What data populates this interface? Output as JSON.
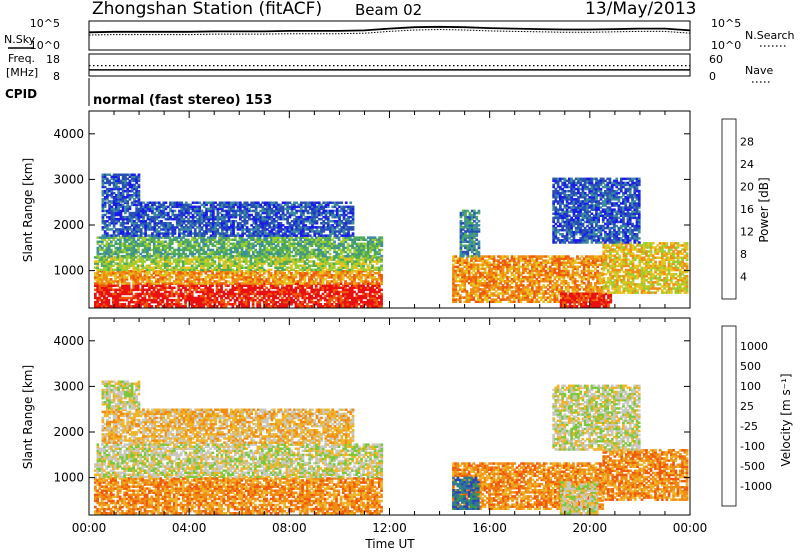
{
  "header": {
    "station": "Zhongshan Station (fitACF)",
    "beam": "Beam 02",
    "date": "13/May/2013",
    "cpid_text": "normal (fast stereo) 153"
  },
  "side_labels": {
    "nsky": "N.Sky",
    "freq_line1": "Freq.",
    "freq_line2": "[MHz]",
    "cpid": "CPID",
    "nsearch": "N.Search",
    "nave": "Nave"
  },
  "chart_data": [
    {
      "type": "line",
      "panel": "noise",
      "left_ticks": [
        "10^5",
        "10^0"
      ],
      "right_ticks": [
        "10^5",
        "10^0"
      ],
      "series": [
        {
          "name": "N.Sky",
          "x": [
            0,
            1,
            2,
            3,
            4,
            5,
            6,
            7,
            8,
            9,
            10,
            11,
            12,
            13,
            14,
            15,
            16,
            17,
            18,
            19,
            20,
            21,
            22,
            23,
            24
          ],
          "y": [
            3.2,
            3.3,
            3.3,
            3.3,
            3.3,
            3.4,
            3.4,
            3.4,
            3.5,
            3.5,
            3.5,
            3.6,
            4.0,
            4.3,
            4.4,
            4.3,
            4.1,
            4.0,
            3.9,
            3.8,
            3.8,
            3.9,
            4.0,
            4.0,
            3.6
          ]
        },
        {
          "name": "N.Search",
          "x": [
            0,
            1,
            2,
            3,
            4,
            5,
            6,
            7,
            8,
            9,
            10,
            11,
            12,
            13,
            14,
            15,
            16,
            17,
            18,
            19,
            20,
            21,
            22,
            23,
            24
          ],
          "y": [
            2.6,
            2.7,
            2.7,
            2.7,
            2.7,
            2.8,
            2.8,
            2.8,
            2.9,
            2.9,
            2.9,
            3.0,
            3.4,
            3.7,
            3.8,
            3.7,
            3.5,
            3.4,
            3.3,
            3.2,
            3.2,
            3.3,
            3.4,
            3.4,
            3.0
          ]
        }
      ]
    },
    {
      "type": "line",
      "panel": "frequency",
      "left_ticks": [
        "18",
        "8"
      ],
      "right_ticks": [
        "60",
        "0"
      ],
      "series": [
        {
          "name": "Freq.",
          "x": [
            0,
            24
          ],
          "y": [
            10.3,
            10.3
          ]
        },
        {
          "name": "Nave",
          "x": [
            0,
            24
          ],
          "y": [
            28,
            28
          ]
        }
      ]
    },
    {
      "type": "heatmap",
      "panel": "power",
      "ylabel": "Slant Range [km]",
      "ylim": [
        180,
        4500
      ],
      "yticks": [
        1000,
        2000,
        3000,
        4000
      ],
      "colorbar_label": "Power [dB]",
      "colorbar_ticks": [
        "4",
        "8",
        "12",
        "16",
        "20",
        "24",
        "28"
      ],
      "colors": [
        "#1a1aee",
        "#2850b4",
        "#3c8ca0",
        "#4faa5a",
        "#9acd32",
        "#e6c31e",
        "#f08c14",
        "#ee5a0a",
        "#e81010"
      ],
      "regions": [
        {
          "t": [
            0.2,
            11.7
          ],
          "r": [
            200,
            700
          ],
          "level": 8
        },
        {
          "t": [
            0.2,
            11.7
          ],
          "r": [
            700,
            1000
          ],
          "level": 6
        },
        {
          "t": [
            0.2,
            11.7
          ],
          "r": [
            1000,
            1300
          ],
          "level": 4
        },
        {
          "t": [
            0.3,
            11.7
          ],
          "r": [
            1300,
            1750
          ],
          "level": 3
        },
        {
          "t": [
            0.5,
            10.5
          ],
          "r": [
            1750,
            2500
          ],
          "level": 1
        },
        {
          "t": [
            0.5,
            2.0
          ],
          "r": [
            2500,
            3100
          ],
          "level": 1
        },
        {
          "t": [
            14.5,
            20.5
          ],
          "r": [
            300,
            1300
          ],
          "level": 6
        },
        {
          "t": [
            18.8,
            20.8
          ],
          "r": [
            200,
            500
          ],
          "level": 8
        },
        {
          "t": [
            20.5,
            23.9
          ],
          "r": [
            500,
            1600
          ],
          "level": 5
        },
        {
          "t": [
            14.8,
            15.6
          ],
          "r": [
            1300,
            2300
          ],
          "level": 2
        },
        {
          "t": [
            18.5,
            22.0
          ],
          "r": [
            1600,
            3000
          ],
          "level": 1
        }
      ]
    },
    {
      "type": "heatmap",
      "panel": "velocity",
      "ylabel": "Slant Range [km]",
      "ylim": [
        180,
        4500
      ],
      "yticks": [
        1000,
        2000,
        3000,
        4000
      ],
      "xlabel": "Time UT",
      "xticks": [
        "00:00",
        "04:00",
        "08:00",
        "12:00",
        "16:00",
        "20:00",
        "00:00"
      ],
      "colorbar_label": "Velocity [m s⁻¹]",
      "colorbar_ticks": [
        "1000",
        "500",
        "100",
        "25",
        "-25",
        "-100",
        "-500",
        "-1000"
      ],
      "colors": [
        "#2846b4",
        "#2e7898",
        "#3c9650",
        "#7cc83c",
        "#c8c8c0",
        "#f0b428",
        "#f08c14",
        "#f05a0a",
        "#e81010"
      ],
      "regions": [
        {
          "t": [
            0.2,
            11.7
          ],
          "r": [
            200,
            1000
          ],
          "level": 6
        },
        {
          "t": [
            0.2,
            11.7
          ],
          "r": [
            1000,
            1300
          ],
          "level": 4
        },
        {
          "t": [
            0.3,
            11.7
          ],
          "r": [
            1300,
            1750
          ],
          "level": 4
        },
        {
          "t": [
            0.5,
            10.5
          ],
          "r": [
            1750,
            2500
          ],
          "level": 5
        },
        {
          "t": [
            0.5,
            2.0
          ],
          "r": [
            2500,
            3100
          ],
          "level": 4
        },
        {
          "t": [
            14.5,
            16.5
          ],
          "r": [
            300,
            1300
          ],
          "level": 6
        },
        {
          "t": [
            16.5,
            20.5
          ],
          "r": [
            300,
            1300
          ],
          "level": 6
        },
        {
          "t": [
            20.5,
            23.9
          ],
          "r": [
            500,
            1600
          ],
          "level": 6
        },
        {
          "t": [
            14.5,
            15.5
          ],
          "r": [
            300,
            1000
          ],
          "level": 1
        },
        {
          "t": [
            18.8,
            20.3
          ],
          "r": [
            200,
            900
          ],
          "level": 4
        },
        {
          "t": [
            18.5,
            22.0
          ],
          "r": [
            1600,
            3000
          ],
          "level": 4
        }
      ]
    }
  ]
}
